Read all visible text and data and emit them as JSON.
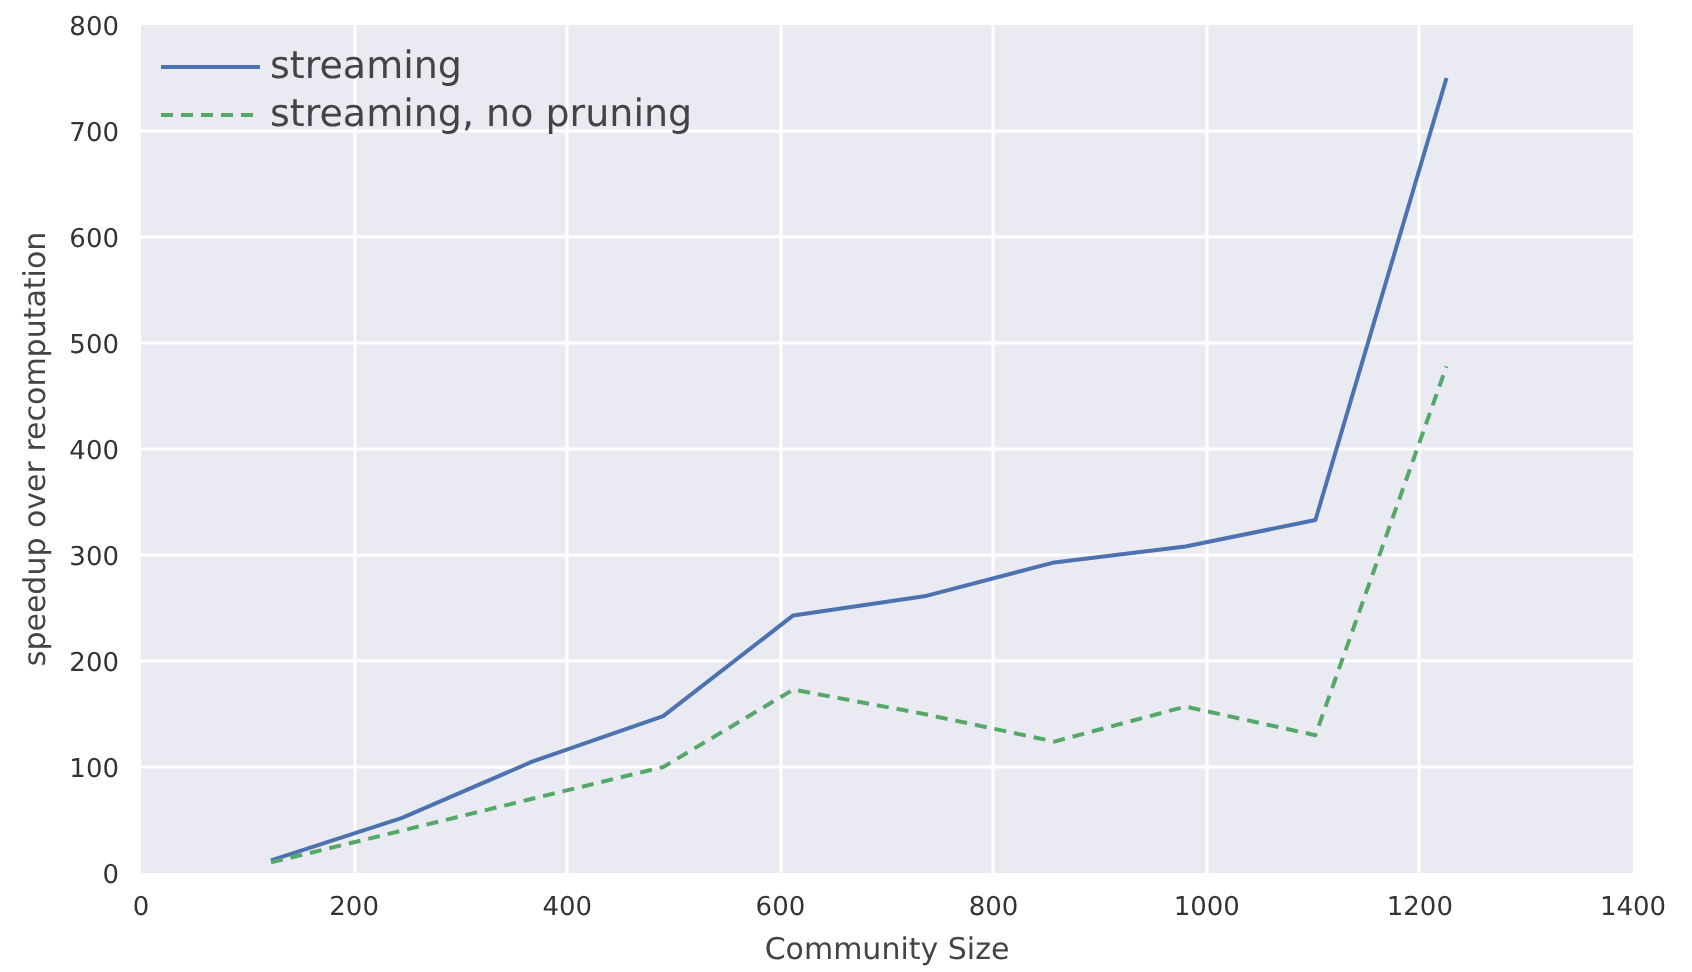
{
  "chart_data": {
    "type": "line",
    "xlabel": "Community Size",
    "ylabel": "speedup over recomputation",
    "x": [
      122,
      245,
      367,
      490,
      612,
      735,
      857,
      980,
      1102,
      1225
    ],
    "series": [
      {
        "name": "streaming",
        "color": "#4c72b0",
        "values": [
          12,
          52,
          105,
          148,
          243,
          261,
          293,
          308,
          333,
          750
        ],
        "line_style": "solid"
      },
      {
        "name": "streaming, no pruning",
        "color": "#55a868",
        "values": [
          10,
          40,
          70,
          100,
          173,
          150,
          124,
          157,
          130,
          478
        ],
        "line_style": "dashed"
      }
    ],
    "xlim": [
      0,
      1400
    ],
    "ylim": [
      0,
      800
    ],
    "xticks": [
      0,
      200,
      400,
      600,
      800,
      1000,
      1200,
      1400
    ],
    "yticks": [
      0,
      100,
      200,
      300,
      400,
      500,
      600,
      700,
      800
    ],
    "grid": true,
    "legend": "top left",
    "marker": "none"
  }
}
